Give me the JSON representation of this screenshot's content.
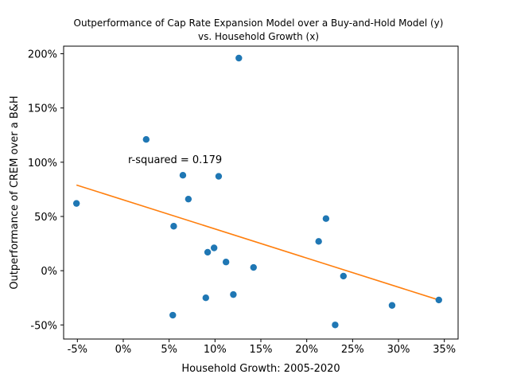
{
  "chart_data": {
    "type": "scatter",
    "title_line1": "Outperformance of Cap Rate Expansion Model over a Buy-and-Hold Model (y)",
    "title_line2": "vs. Household Growth (x)",
    "xlabel": "Household Growth: 2005-2020",
    "ylabel": "Outperformance of CREM over a B&H",
    "annotation": "r-squared = 0.179",
    "xlim": [
      -0.065,
      0.365
    ],
    "ylim": [
      -0.63,
      2.07
    ],
    "x_ticks": [
      {
        "value": -0.05,
        "label": "-5%"
      },
      {
        "value": 0.0,
        "label": "0%"
      },
      {
        "value": 0.05,
        "label": "5%"
      },
      {
        "value": 0.1,
        "label": "10%"
      },
      {
        "value": 0.15,
        "label": "15%"
      },
      {
        "value": 0.2,
        "label": "20%"
      },
      {
        "value": 0.25,
        "label": "25%"
      },
      {
        "value": 0.3,
        "label": "30%"
      },
      {
        "value": 0.35,
        "label": "35%"
      }
    ],
    "y_ticks": [
      {
        "value": -0.5,
        "label": "-50%"
      },
      {
        "value": 0.0,
        "label": "0%"
      },
      {
        "value": 0.5,
        "label": "50%"
      },
      {
        "value": 1.0,
        "label": "100%"
      },
      {
        "value": 1.5,
        "label": "150%"
      },
      {
        "value": 2.0,
        "label": "200%"
      }
    ],
    "points": [
      {
        "x": -0.051,
        "y": 0.62
      },
      {
        "x": 0.025,
        "y": 1.21
      },
      {
        "x": 0.055,
        "y": 0.41
      },
      {
        "x": 0.054,
        "y": -0.41
      },
      {
        "x": 0.065,
        "y": 0.88
      },
      {
        "x": 0.071,
        "y": 0.66
      },
      {
        "x": 0.09,
        "y": -0.25
      },
      {
        "x": 0.092,
        "y": 0.17
      },
      {
        "x": 0.099,
        "y": 0.21
      },
      {
        "x": 0.104,
        "y": 0.87
      },
      {
        "x": 0.112,
        "y": 0.08
      },
      {
        "x": 0.12,
        "y": -0.22
      },
      {
        "x": 0.126,
        "y": 1.96
      },
      {
        "x": 0.142,
        "y": 0.03
      },
      {
        "x": 0.213,
        "y": 0.27
      },
      {
        "x": 0.221,
        "y": 0.48
      },
      {
        "x": 0.231,
        "y": -0.5
      },
      {
        "x": 0.24,
        "y": -0.05
      },
      {
        "x": 0.293,
        "y": -0.32
      },
      {
        "x": 0.344,
        "y": -0.27
      }
    ],
    "trendline": {
      "x": [
        -0.051,
        0.344
      ],
      "y": [
        0.79,
        -0.27
      ]
    },
    "colors": {
      "points": "#1f77b4",
      "trendline": "#ff7f0e"
    }
  }
}
